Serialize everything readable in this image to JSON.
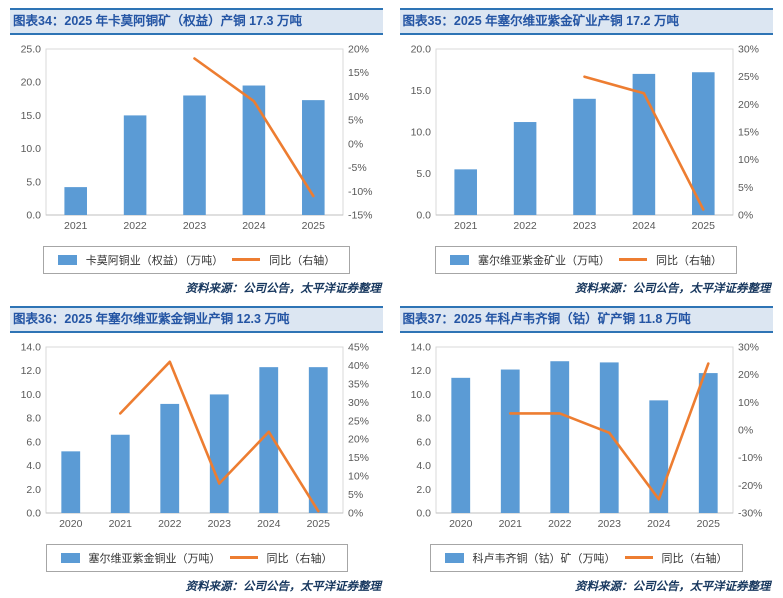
{
  "colors": {
    "bar": "#5B9BD5",
    "line": "#ED7D31",
    "title_text": "#2455A4",
    "title_bg": "#DCE6F2",
    "title_border": "#2E74B5",
    "axis_text": "#595959",
    "plot_border": "#D9D9D9",
    "axis_line": "#BFBFBF",
    "legend_border": "#A6A6A6",
    "source_text": "#17375E"
  },
  "panels": [
    {
      "title": "图表34：2025 年卡莫阿铜矿（权益）产铜 17.3 万吨",
      "legend": {
        "bar": "卡莫阿铜业（权益）（万吨）",
        "line": "同比（右轴）"
      },
      "source": "资料来源：公司公告，太平洋证券整理"
    },
    {
      "title": "图表35：2025 年塞尔维亚紫金矿业产铜 17.2 万吨",
      "legend": {
        "bar": "塞尔维亚紫金矿业（万吨）",
        "line": "同比（右轴）"
      },
      "source": "资料来源：公司公告，太平洋证券整理"
    },
    {
      "title": "图表36：2025 年塞尔维亚紫金铜业产铜 12.3 万吨",
      "legend": {
        "bar": "塞尔维亚紫金铜业（万吨）",
        "line": "同比（右轴）"
      },
      "source": "资料来源：公司公告，太平洋证券整理"
    },
    {
      "title": "图表37：2025 年科卢韦齐铜（钴）矿产铜 11.8 万吨",
      "legend": {
        "bar": "科卢韦齐铜（钴）矿（万吨）",
        "line": "同比（右轴）"
      },
      "source": "资料来源：公司公告，太平洋证券整理"
    }
  ],
  "chart_data": [
    {
      "type": "bar",
      "title": "图表34：2025 年卡莫阿铜矿（权益）产铜 17.3 万吨",
      "categories": [
        "2021",
        "2022",
        "2023",
        "2024",
        "2025"
      ],
      "series": [
        {
          "name": "卡莫阿铜业（权益）（万吨）",
          "type": "bar",
          "axis": "left",
          "values": [
            4.2,
            15.0,
            18.0,
            19.5,
            17.3
          ]
        },
        {
          "name": "同比（右轴）",
          "type": "line",
          "axis": "right",
          "values": [
            null,
            null,
            18,
            9,
            -11
          ]
        }
      ],
      "left_axis": {
        "min": 0,
        "max": 25,
        "ticks": [
          "0.0",
          "5.0",
          "10.0",
          "15.0",
          "20.0",
          "25.0"
        ]
      },
      "right_axis": {
        "min": -15,
        "max": 20,
        "ticks": [
          "-15%",
          "-10%",
          "-5%",
          "0%",
          "5%",
          "10%",
          "15%",
          "20%"
        ]
      },
      "grid": false,
      "legend_position": "bottom"
    },
    {
      "type": "bar",
      "title": "图表35：2025 年塞尔维亚紫金矿业产铜 17.2 万吨",
      "categories": [
        "2021",
        "2022",
        "2023",
        "2024",
        "2025"
      ],
      "series": [
        {
          "name": "塞尔维亚紫金矿业（万吨）",
          "type": "bar",
          "axis": "left",
          "values": [
            5.5,
            11.2,
            14.0,
            17.0,
            17.2
          ]
        },
        {
          "name": "同比（右轴）",
          "type": "line",
          "axis": "right",
          "values": [
            null,
            null,
            25,
            22,
            1
          ]
        }
      ],
      "left_axis": {
        "min": 0,
        "max": 20,
        "ticks": [
          "0.0",
          "5.0",
          "10.0",
          "15.0",
          "20.0"
        ]
      },
      "right_axis": {
        "min": 0,
        "max": 30,
        "ticks": [
          "0%",
          "5%",
          "10%",
          "15%",
          "20%",
          "25%",
          "30%"
        ]
      },
      "grid": false,
      "legend_position": "bottom"
    },
    {
      "type": "bar",
      "title": "图表36：2025 年塞尔维亚紫金铜业产铜 12.3 万吨",
      "categories": [
        "2020",
        "2021",
        "2022",
        "2023",
        "2024",
        "2025"
      ],
      "series": [
        {
          "name": "塞尔维亚紫金铜业（万吨）",
          "type": "bar",
          "axis": "left",
          "values": [
            5.2,
            6.6,
            9.2,
            10.0,
            12.3,
            12.3
          ]
        },
        {
          "name": "同比（右轴）",
          "type": "line",
          "axis": "right",
          "values": [
            null,
            27,
            41,
            8,
            22,
            0.5
          ]
        }
      ],
      "left_axis": {
        "min": 0,
        "max": 14,
        "ticks": [
          "0.0",
          "2.0",
          "4.0",
          "6.0",
          "8.0",
          "10.0",
          "12.0",
          "14.0"
        ]
      },
      "right_axis": {
        "min": 0,
        "max": 45,
        "ticks": [
          "0%",
          "5%",
          "10%",
          "15%",
          "20%",
          "25%",
          "30%",
          "35%",
          "40%",
          "45%"
        ]
      },
      "grid": false,
      "legend_position": "bottom"
    },
    {
      "type": "bar",
      "title": "图表37：2025 年科卢韦齐铜（钴）矿产铜 11.8 万吨",
      "categories": [
        "2020",
        "2021",
        "2022",
        "2023",
        "2024",
        "2025"
      ],
      "series": [
        {
          "name": "科卢韦齐铜（钴）矿（万吨）",
          "type": "bar",
          "axis": "left",
          "values": [
            11.4,
            12.1,
            12.8,
            12.7,
            9.5,
            11.8
          ]
        },
        {
          "name": "同比（右轴）",
          "type": "line",
          "axis": "right",
          "values": [
            null,
            6,
            6,
            -1,
            -25,
            24
          ]
        }
      ],
      "left_axis": {
        "min": 0,
        "max": 14,
        "ticks": [
          "0.0",
          "2.0",
          "4.0",
          "6.0",
          "8.0",
          "10.0",
          "12.0",
          "14.0"
        ]
      },
      "right_axis": {
        "min": -30,
        "max": 30,
        "ticks": [
          "-30%",
          "-20%",
          "-10%",
          "0%",
          "10%",
          "20%",
          "30%"
        ]
      },
      "grid": false,
      "legend_position": "bottom"
    }
  ]
}
